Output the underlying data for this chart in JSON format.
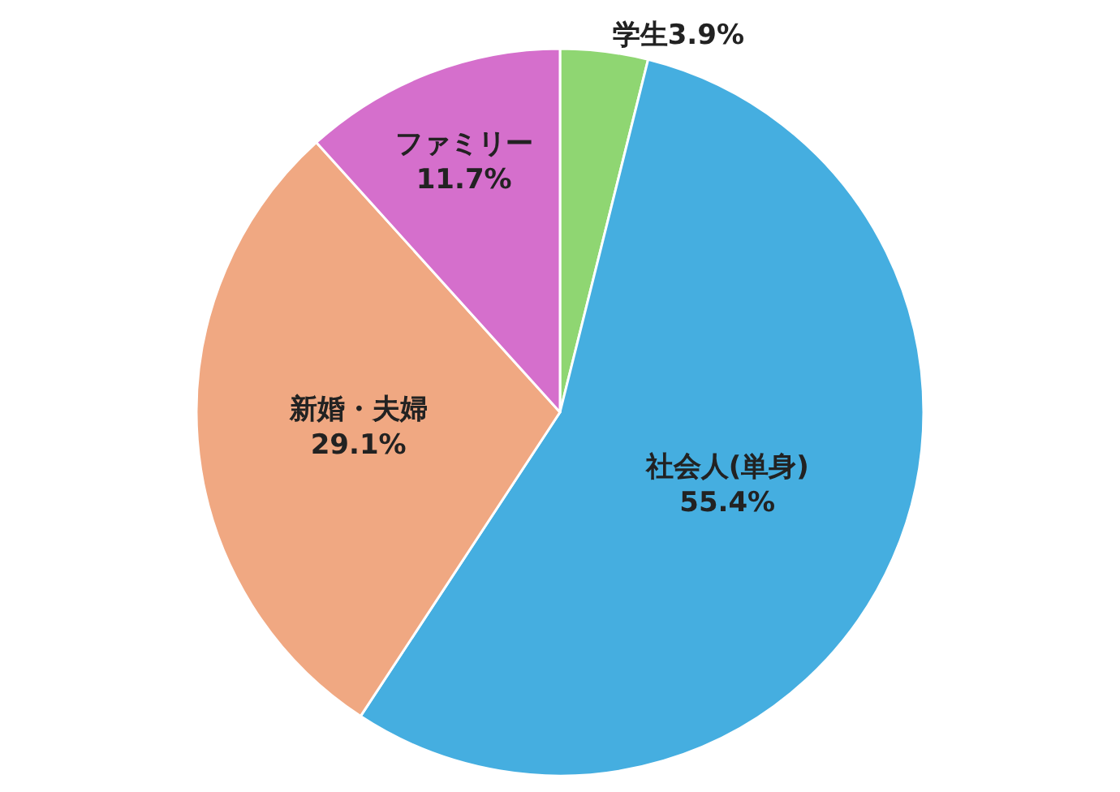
{
  "chart_data": {
    "type": "pie",
    "categories": [
      "学生",
      "社会人(単身)",
      "新婚・夫婦",
      "ファミリー"
    ],
    "values": [
      3.9,
      55.4,
      29.1,
      11.7
    ],
    "value_labels": [
      "3.9%",
      "55.4%",
      "29.1%",
      "11.7%"
    ],
    "colors": [
      "#8fd672",
      "#45aee0",
      "#f0a882",
      "#d56fcc"
    ],
    "legend": false
  }
}
